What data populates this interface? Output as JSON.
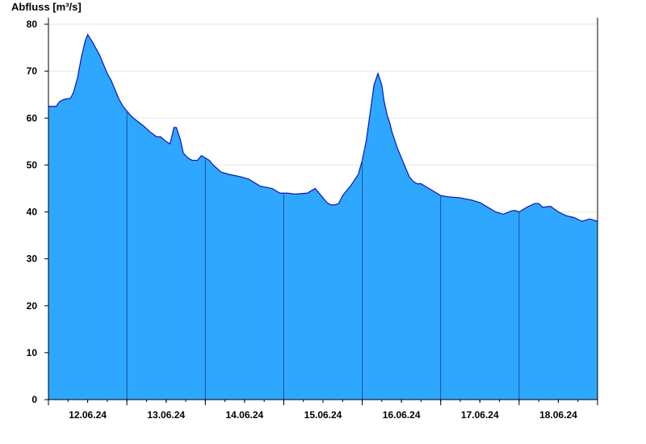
{
  "chart_data": {
    "type": "area",
    "ylabel": "Abfluss [m³/s]",
    "xlabel": "",
    "title": "",
    "ylim": [
      0,
      80
    ],
    "y_ticks": [
      0,
      10,
      20,
      30,
      40,
      50,
      60,
      70,
      80
    ],
    "x_range_days": [
      11.5,
      18.5
    ],
    "x_ticks": [
      {
        "day": 12,
        "label": "12.06.24"
      },
      {
        "day": 13,
        "label": "13.06.24"
      },
      {
        "day": 14,
        "label": "14.06.24"
      },
      {
        "day": 15,
        "label": "15.06.24"
      },
      {
        "day": 16,
        "label": "16.06.24"
      },
      {
        "day": 17,
        "label": "17.06.24"
      },
      {
        "day": 18,
        "label": "18.06.24"
      }
    ],
    "grid": "horizontal",
    "fill_color": "#2ea8ff",
    "line_color": "#1010c0",
    "series": [
      {
        "x": [
          11.5,
          11.6,
          11.64,
          11.7,
          11.78,
          11.82,
          11.87,
          11.92,
          11.97,
          12.0,
          12.03,
          12.07,
          12.1,
          12.15,
          12.2,
          12.25,
          12.3,
          12.35,
          12.4,
          12.45,
          12.5,
          12.55,
          12.62,
          12.7,
          12.8,
          12.88,
          12.93,
          13.0,
          13.05,
          13.1,
          13.13,
          13.18,
          13.22,
          13.28,
          13.33,
          13.35,
          13.4,
          13.45,
          13.5,
          13.55,
          13.6,
          13.7,
          13.8,
          13.95,
          14.05,
          14.2,
          14.35,
          14.45,
          14.55,
          14.65,
          14.8,
          14.9,
          15.0,
          15.05,
          15.1,
          15.15,
          15.2,
          15.25,
          15.35,
          15.45,
          15.5,
          15.55,
          15.6,
          15.65,
          15.7,
          15.75,
          15.78,
          15.82,
          15.85,
          15.88,
          15.91,
          15.95,
          16.0,
          16.05,
          16.1,
          16.15,
          16.2,
          16.25,
          16.3,
          16.4,
          16.45,
          16.5,
          16.6,
          16.75,
          16.9,
          17.0,
          17.1,
          17.2,
          17.3,
          17.4,
          17.45,
          17.5,
          17.6,
          17.7,
          17.75,
          17.8,
          17.9,
          18.0,
          18.1,
          18.2,
          18.3,
          18.4,
          18.5
        ],
        "y": [
          62.5,
          62.5,
          63.5,
          64.0,
          64.2,
          65.5,
          68.5,
          73.0,
          76.5,
          77.8,
          77.0,
          76.0,
          75.0,
          73.5,
          71.5,
          69.5,
          68.0,
          66.0,
          64.0,
          62.5,
          61.5,
          60.5,
          59.5,
          58.5,
          57.0,
          56.0,
          56.0,
          55.0,
          54.5,
          58.0,
          58.0,
          55.5,
          52.5,
          51.5,
          51.0,
          51.0,
          51.0,
          52.0,
          51.5,
          51.0,
          50.0,
          48.5,
          48.0,
          47.5,
          47.0,
          45.5,
          45.0,
          44.0,
          44.0,
          43.8,
          44.0,
          45.0,
          43.0,
          42.0,
          41.5,
          41.5,
          41.8,
          43.5,
          45.5,
          48.0,
          51.0,
          55.0,
          61.0,
          67.0,
          69.5,
          67.0,
          63.5,
          60.5,
          59.0,
          57.0,
          55.5,
          53.5,
          51.5,
          49.5,
          47.5,
          46.5,
          46.0,
          46.0,
          45.5,
          44.5,
          44.0,
          43.5,
          43.2,
          43.0,
          42.5,
          42.0,
          41.0,
          40.0,
          39.5,
          40.2,
          40.3,
          40.0,
          41.0,
          41.8,
          41.8,
          41.0,
          41.2,
          40.0,
          39.2,
          38.8,
          38.0,
          38.5,
          38.0
        ]
      }
    ]
  }
}
